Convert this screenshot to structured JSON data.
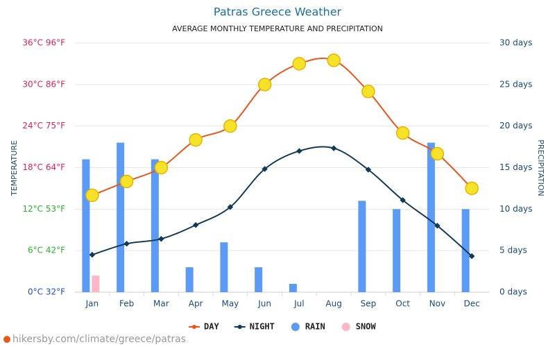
{
  "chart_data": {
    "type": "combo",
    "title": "Patras Greece Weather",
    "subtitle": "AVERAGE MONTHLY TEMPERATURE AND PRECIPITATION",
    "ylabel": "TEMPERATURE",
    "y2label": "PRECIPITATION",
    "footer": "hikersby.com/climate/greece/patras",
    "categories": [
      "Jan",
      "Feb",
      "Mar",
      "Apr",
      "May",
      "Jun",
      "Jul",
      "Aug",
      "Sep",
      "Oct",
      "Nov",
      "Dec"
    ],
    "ylim": [
      0,
      36
    ],
    "yticks": [
      {
        "value": 0,
        "label": "0°C 32°F"
      },
      {
        "value": 6,
        "label": "6°C 42°F"
      },
      {
        "value": 12,
        "label": "12°C 53°F"
      },
      {
        "value": 18,
        "label": "18°C 64°F"
      },
      {
        "value": 24,
        "label": "24°C 75°F"
      },
      {
        "value": 30,
        "label": "30°C 86°F"
      },
      {
        "value": 36,
        "label": "36°C 96°F"
      }
    ],
    "ytick_colors": [
      "#1f4fd1",
      "#2bb02b",
      "#2bb02b",
      "#e0205a",
      "#e0205a",
      "#e0205a",
      "#e0205a"
    ],
    "y2lim": [
      0,
      30
    ],
    "y2ticks": [
      {
        "value": 0,
        "label": "0 days"
      },
      {
        "value": 5,
        "label": "5 days"
      },
      {
        "value": 10,
        "label": "10 days"
      },
      {
        "value": 15,
        "label": "15 days"
      },
      {
        "value": 20,
        "label": "20 days"
      },
      {
        "value": 25,
        "label": "25 days"
      },
      {
        "value": 30,
        "label": "30 days"
      }
    ],
    "grid": true,
    "legend": "bottom",
    "series": [
      {
        "name": "DAY",
        "type": "line",
        "color": "#e8561c",
        "values": [
          14,
          16,
          18,
          22,
          24,
          30,
          33,
          33.5,
          29,
          23,
          20,
          15
        ]
      },
      {
        "name": "NIGHT",
        "type": "line",
        "color": "#123a55",
        "values": [
          5.4,
          7,
          7.7,
          9.7,
          12.3,
          17.8,
          20.4,
          20.8,
          17.7,
          13.3,
          9.6,
          5.2
        ]
      },
      {
        "name": "RAIN",
        "type": "bar",
        "axis": "y2",
        "color": "#5b9af5",
        "values": [
          16,
          18,
          16,
          3,
          6,
          3,
          1,
          0,
          11,
          10,
          18,
          10
        ]
      },
      {
        "name": "SNOW",
        "type": "bar",
        "axis": "y2",
        "color": "#ffb6c8",
        "values": [
          2,
          0,
          0,
          0,
          0,
          0,
          0,
          0,
          0,
          0,
          0,
          0
        ]
      }
    ]
  }
}
